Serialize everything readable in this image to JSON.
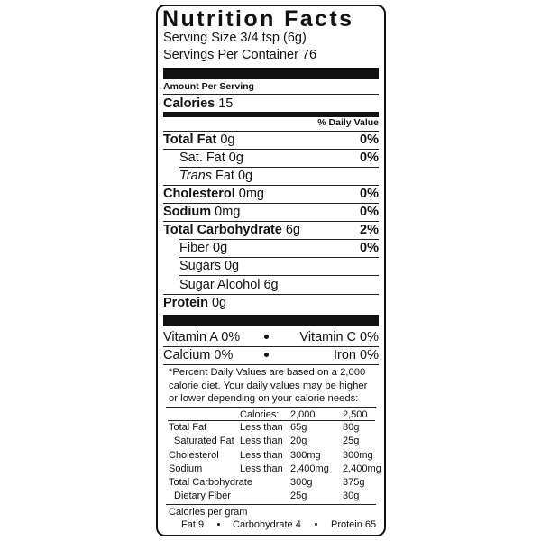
{
  "header": {
    "title": "Nutrition Facts",
    "serving_size": "Serving Size 3/4 tsp (6g)",
    "servings_per_container": "Servings Per Container 76"
  },
  "amount_per_serving": "Amount Per Serving",
  "calories": {
    "label": "Calories",
    "amount": "15"
  },
  "daily_value_heading": "% Daily Value",
  "nutrients": [
    {
      "label": "Total Fat",
      "amount": "0g",
      "daily_value": "0%"
    },
    {
      "label": "Sat. Fat",
      "amount": "0g",
      "daily_value": "0%"
    },
    {
      "prefix": "Trans",
      "label": "Fat",
      "amount": "0g"
    },
    {
      "label": "Cholesterol",
      "amount": "0mg",
      "daily_value": "0%"
    },
    {
      "label": "Sodium",
      "amount": "0mg",
      "daily_value": "0%"
    },
    {
      "label": "Total Carbohydrate",
      "amount": "6g",
      "daily_value": "2%"
    },
    {
      "label": "Fiber",
      "amount": "0g",
      "daily_value": "0%"
    },
    {
      "label": "Sugars",
      "amount": "0g"
    },
    {
      "label": "Sugar Alcohol",
      "amount": "6g"
    },
    {
      "label": "Protein",
      "amount": "0g"
    }
  ],
  "vitamins": [
    [
      "Vitamin A 0%",
      "Vitamin C 0%"
    ],
    [
      "Calcium 0%",
      "Iron 0%"
    ]
  ],
  "footnote": "*Percent Daily Values are based on a 2,000 calorie diet. Your daily values may be higher or lower depending on your calorie needs:",
  "daily_values_table": {
    "header": [
      "Calories:",
      "2,000",
      "2,500"
    ],
    "rows": [
      [
        "Total Fat",
        "Less than",
        "65g",
        "80g"
      ],
      [
        "Saturated Fat",
        "Less than",
        "20g",
        "25g"
      ],
      [
        "Cholesterol",
        "Less than",
        "300mg",
        "300mg"
      ],
      [
        "Sodium",
        "Less than",
        "2,400mg",
        "2,400mg"
      ],
      [
        "Total Carbohydrate",
        "300g",
        "375g"
      ],
      [
        "Dietary Fiber",
        "25g",
        "30g"
      ]
    ]
  },
  "calories_per_gram": {
    "heading": "Calories per gram",
    "items": [
      "Fat 9",
      "Carbohydrate 4",
      "Protein 65"
    ]
  }
}
